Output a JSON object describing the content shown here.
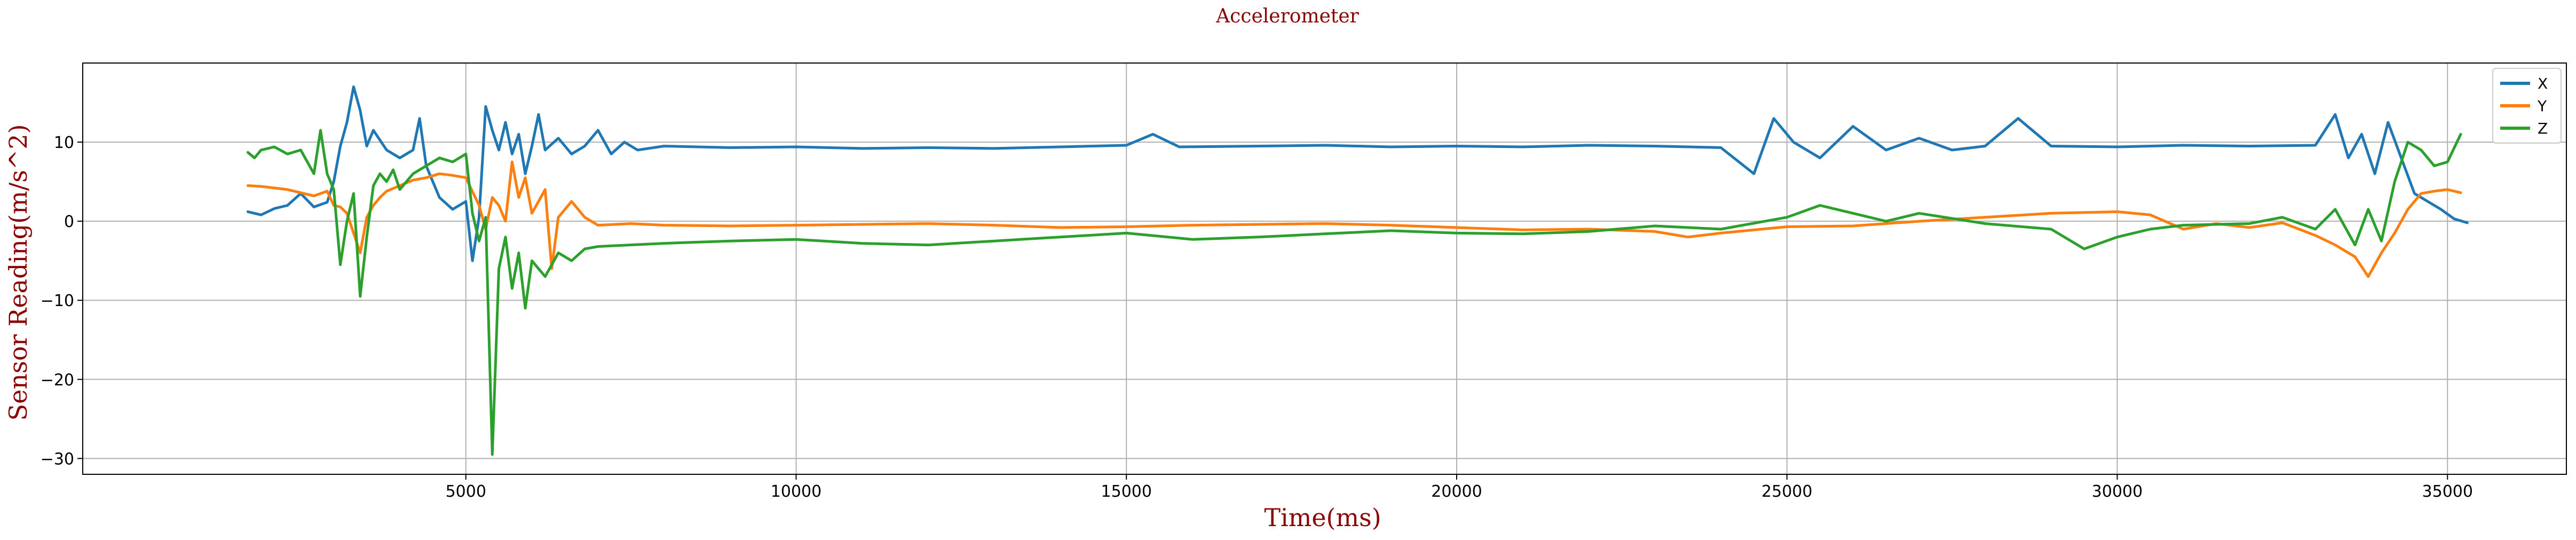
{
  "chart_data": {
    "type": "line",
    "title": "Accelerometer",
    "xlabel": "Time(ms)",
    "ylabel": "Sensor Reading(m/s^2)",
    "xlim": [
      -800,
      36800
    ],
    "ylim": [
      -32,
      20
    ],
    "xticks": [
      5000,
      10000,
      15000,
      20000,
      25000,
      30000,
      35000
    ],
    "yticks": [
      -30,
      -20,
      -10,
      0,
      10
    ],
    "grid": true,
    "legend_position": "top-right",
    "series": [
      {
        "name": "X",
        "color": "#1f77b4",
        "points": [
          [
            1700,
            1.2
          ],
          [
            1900,
            0.8
          ],
          [
            2100,
            1.6
          ],
          [
            2300,
            2.0
          ],
          [
            2500,
            3.5
          ],
          [
            2700,
            1.8
          ],
          [
            2900,
            2.4
          ],
          [
            3000,
            5.0
          ],
          [
            3100,
            9.5
          ],
          [
            3200,
            12.5
          ],
          [
            3300,
            17.0
          ],
          [
            3400,
            14.0
          ],
          [
            3500,
            9.5
          ],
          [
            3600,
            11.5
          ],
          [
            3800,
            9.0
          ],
          [
            4000,
            8.0
          ],
          [
            4200,
            9.0
          ],
          [
            4300,
            13.0
          ],
          [
            4400,
            7.0
          ],
          [
            4600,
            3.0
          ],
          [
            4800,
            1.5
          ],
          [
            5000,
            2.5
          ],
          [
            5100,
            -5.0
          ],
          [
            5200,
            0.5
          ],
          [
            5300,
            14.5
          ],
          [
            5400,
            11.5
          ],
          [
            5500,
            9.0
          ],
          [
            5600,
            12.5
          ],
          [
            5700,
            8.5
          ],
          [
            5800,
            11.0
          ],
          [
            5900,
            6.0
          ],
          [
            6000,
            9.5
          ],
          [
            6100,
            13.5
          ],
          [
            6200,
            9.0
          ],
          [
            6400,
            10.5
          ],
          [
            6600,
            8.5
          ],
          [
            6800,
            9.5
          ],
          [
            7000,
            11.5
          ],
          [
            7200,
            8.5
          ],
          [
            7400,
            10.0
          ],
          [
            7600,
            9.0
          ],
          [
            8000,
            9.5
          ],
          [
            9000,
            9.3
          ],
          [
            10000,
            9.4
          ],
          [
            11000,
            9.2
          ],
          [
            12000,
            9.3
          ],
          [
            13000,
            9.2
          ],
          [
            14000,
            9.4
          ],
          [
            15000,
            9.6
          ],
          [
            15400,
            11.0
          ],
          [
            15800,
            9.4
          ],
          [
            17000,
            9.5
          ],
          [
            18000,
            9.6
          ],
          [
            19000,
            9.4
          ],
          [
            20000,
            9.5
          ],
          [
            21000,
            9.4
          ],
          [
            22000,
            9.6
          ],
          [
            23000,
            9.5
          ],
          [
            24000,
            9.3
          ],
          [
            24500,
            6.0
          ],
          [
            24800,
            13.0
          ],
          [
            25100,
            10.0
          ],
          [
            25500,
            8.0
          ],
          [
            26000,
            12.0
          ],
          [
            26500,
            9.0
          ],
          [
            27000,
            10.5
          ],
          [
            27500,
            9.0
          ],
          [
            28000,
            9.5
          ],
          [
            28500,
            13.0
          ],
          [
            29000,
            9.5
          ],
          [
            30000,
            9.4
          ],
          [
            31000,
            9.6
          ],
          [
            32000,
            9.5
          ],
          [
            33000,
            9.6
          ],
          [
            33300,
            13.5
          ],
          [
            33500,
            8.0
          ],
          [
            33700,
            11.0
          ],
          [
            33900,
            6.0
          ],
          [
            34100,
            12.5
          ],
          [
            34300,
            8.0
          ],
          [
            34500,
            3.5
          ],
          [
            34700,
            2.5
          ],
          [
            34900,
            1.5
          ],
          [
            35100,
            0.3
          ],
          [
            35300,
            -0.2
          ]
        ]
      },
      {
        "name": "Y",
        "color": "#ff7f0e",
        "points": [
          [
            1700,
            4.5
          ],
          [
            1900,
            4.4
          ],
          [
            2100,
            4.2
          ],
          [
            2300,
            4.0
          ],
          [
            2500,
            3.6
          ],
          [
            2700,
            3.2
          ],
          [
            2900,
            3.8
          ],
          [
            3000,
            2.0
          ],
          [
            3100,
            1.8
          ],
          [
            3200,
            1.0
          ],
          [
            3400,
            -4.0
          ],
          [
            3500,
            0.5
          ],
          [
            3600,
            2.0
          ],
          [
            3700,
            3.0
          ],
          [
            3800,
            3.8
          ],
          [
            4000,
            4.5
          ],
          [
            4200,
            5.2
          ],
          [
            4400,
            5.5
          ],
          [
            4600,
            6.0
          ],
          [
            4800,
            5.8
          ],
          [
            5000,
            5.5
          ],
          [
            5200,
            2.0
          ],
          [
            5300,
            -1.0
          ],
          [
            5400,
            3.0
          ],
          [
            5500,
            2.0
          ],
          [
            5600,
            0.0
          ],
          [
            5700,
            7.5
          ],
          [
            5800,
            3.0
          ],
          [
            5900,
            5.5
          ],
          [
            6000,
            1.0
          ],
          [
            6200,
            4.0
          ],
          [
            6300,
            -6.0
          ],
          [
            6400,
            0.5
          ],
          [
            6600,
            2.5
          ],
          [
            6800,
            0.5
          ],
          [
            7000,
            -0.5
          ],
          [
            7500,
            -0.3
          ],
          [
            8000,
            -0.5
          ],
          [
            9000,
            -0.6
          ],
          [
            10000,
            -0.5
          ],
          [
            11000,
            -0.4
          ],
          [
            12000,
            -0.3
          ],
          [
            13000,
            -0.5
          ],
          [
            14000,
            -0.8
          ],
          [
            15000,
            -0.7
          ],
          [
            16000,
            -0.5
          ],
          [
            17000,
            -0.4
          ],
          [
            18000,
            -0.3
          ],
          [
            19000,
            -0.5
          ],
          [
            20000,
            -0.8
          ],
          [
            21000,
            -1.1
          ],
          [
            22000,
            -1.0
          ],
          [
            23000,
            -1.3
          ],
          [
            23500,
            -2.0
          ],
          [
            24000,
            -1.5
          ],
          [
            25000,
            -0.7
          ],
          [
            26000,
            -0.6
          ],
          [
            27000,
            0.0
          ],
          [
            28000,
            0.5
          ],
          [
            29000,
            1.0
          ],
          [
            30000,
            1.2
          ],
          [
            30500,
            0.8
          ],
          [
            31000,
            -1.0
          ],
          [
            31500,
            -0.3
          ],
          [
            32000,
            -0.8
          ],
          [
            32500,
            -0.2
          ],
          [
            33000,
            -1.8
          ],
          [
            33300,
            -3.0
          ],
          [
            33600,
            -4.5
          ],
          [
            33800,
            -7.0
          ],
          [
            34000,
            -4.0
          ],
          [
            34200,
            -1.5
          ],
          [
            34400,
            1.5
          ],
          [
            34600,
            3.5
          ],
          [
            34800,
            3.8
          ],
          [
            35000,
            4.0
          ],
          [
            35200,
            3.6
          ]
        ]
      },
      {
        "name": "Z",
        "color": "#2ca02c",
        "points": [
          [
            1700,
            8.7
          ],
          [
            1800,
            8.0
          ],
          [
            1900,
            9.0
          ],
          [
            2100,
            9.4
          ],
          [
            2300,
            8.5
          ],
          [
            2500,
            9.0
          ],
          [
            2700,
            6.0
          ],
          [
            2800,
            11.5
          ],
          [
            2900,
            6.0
          ],
          [
            3000,
            4.0
          ],
          [
            3100,
            -5.5
          ],
          [
            3200,
            0.0
          ],
          [
            3300,
            3.5
          ],
          [
            3400,
            -9.5
          ],
          [
            3500,
            -2.0
          ],
          [
            3600,
            4.5
          ],
          [
            3700,
            6.0
          ],
          [
            3800,
            5.0
          ],
          [
            3900,
            6.5
          ],
          [
            4000,
            4.0
          ],
          [
            4200,
            6.0
          ],
          [
            4400,
            7.0
          ],
          [
            4600,
            8.0
          ],
          [
            4800,
            7.5
          ],
          [
            5000,
            8.5
          ],
          [
            5100,
            1.0
          ],
          [
            5200,
            -2.5
          ],
          [
            5300,
            0.5
          ],
          [
            5400,
            -29.5
          ],
          [
            5500,
            -6.0
          ],
          [
            5600,
            -2.0
          ],
          [
            5700,
            -8.5
          ],
          [
            5800,
            -4.0
          ],
          [
            5900,
            -11.0
          ],
          [
            6000,
            -5.0
          ],
          [
            6200,
            -7.0
          ],
          [
            6400,
            -4.0
          ],
          [
            6600,
            -5.0
          ],
          [
            6800,
            -3.5
          ],
          [
            7000,
            -3.2
          ],
          [
            8000,
            -2.8
          ],
          [
            9000,
            -2.5
          ],
          [
            10000,
            -2.3
          ],
          [
            11000,
            -2.8
          ],
          [
            12000,
            -3.0
          ],
          [
            13000,
            -2.5
          ],
          [
            14000,
            -2.0
          ],
          [
            15000,
            -1.5
          ],
          [
            16000,
            -2.3
          ],
          [
            17000,
            -2.0
          ],
          [
            18000,
            -1.6
          ],
          [
            19000,
            -1.2
          ],
          [
            20000,
            -1.5
          ],
          [
            21000,
            -1.6
          ],
          [
            22000,
            -1.3
          ],
          [
            23000,
            -0.6
          ],
          [
            24000,
            -1.0
          ],
          [
            25000,
            0.5
          ],
          [
            25500,
            2.0
          ],
          [
            26000,
            1.0
          ],
          [
            26500,
            0.0
          ],
          [
            27000,
            1.0
          ],
          [
            28000,
            -0.3
          ],
          [
            29000,
            -1.0
          ],
          [
            29500,
            -3.5
          ],
          [
            30000,
            -2.0
          ],
          [
            30500,
            -1.0
          ],
          [
            31000,
            -0.5
          ],
          [
            32000,
            -0.3
          ],
          [
            32500,
            0.5
          ],
          [
            33000,
            -1.0
          ],
          [
            33300,
            1.5
          ],
          [
            33600,
            -3.0
          ],
          [
            33800,
            1.5
          ],
          [
            34000,
            -2.5
          ],
          [
            34200,
            5.0
          ],
          [
            34400,
            10.0
          ],
          [
            34600,
            9.0
          ],
          [
            34800,
            7.0
          ],
          [
            35000,
            7.5
          ],
          [
            35200,
            11.0
          ]
        ]
      }
    ]
  }
}
